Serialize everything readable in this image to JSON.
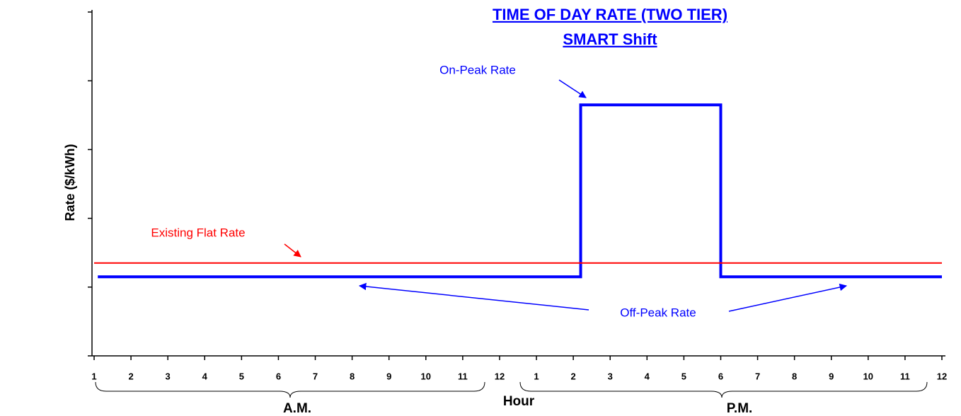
{
  "chart_data": {
    "type": "line",
    "title": "TIME OF DAY RATE (TWO TIER)",
    "subtitle": "SMART Shift",
    "x_label": "Hour",
    "y_label": "Rate ($/kWh)",
    "xlim": [
      1,
      24
    ],
    "xticks": [
      1,
      2,
      3,
      4,
      5,
      6,
      7,
      8,
      9,
      10,
      11,
      12,
      {
        "value": 13,
        "label": "1"
      },
      {
        "value": 14,
        "label": "2"
      },
      {
        "value": 15,
        "label": "3"
      },
      {
        "value": 16,
        "label": "4"
      },
      {
        "value": 17,
        "label": "5"
      },
      {
        "value": 18,
        "label": "6"
      },
      {
        "value": 19,
        "label": "7"
      },
      {
        "value": 20,
        "label": "8"
      },
      {
        "value": 21,
        "label": "9"
      },
      {
        "value": 22,
        "label": "10"
      },
      {
        "value": 23,
        "label": "11"
      },
      {
        "value": 24,
        "label": "12"
      }
    ],
    "ylim": [
      0,
      5
    ],
    "yticks": [
      0,
      1,
      2,
      3,
      4,
      5
    ],
    "series": [
      {
        "color": "#0000ff",
        "x": [
          1.1,
          14.2,
          14.2,
          18,
          18,
          24
        ],
        "values": [
          1.15,
          1.15,
          3.65,
          3.65,
          1.15,
          1.15
        ]
      },
      {
        "color": "#ff0000",
        "x": [
          1,
          24
        ],
        "values": [
          1.35,
          1.35
        ]
      }
    ],
    "annotations": {
      "on_peak": "On-Peak Rate",
      "flat": "Existing Flat Rate",
      "off_peak": "Off-Peak Rate",
      "am": "A.M.",
      "pm": "P.M."
    }
  }
}
